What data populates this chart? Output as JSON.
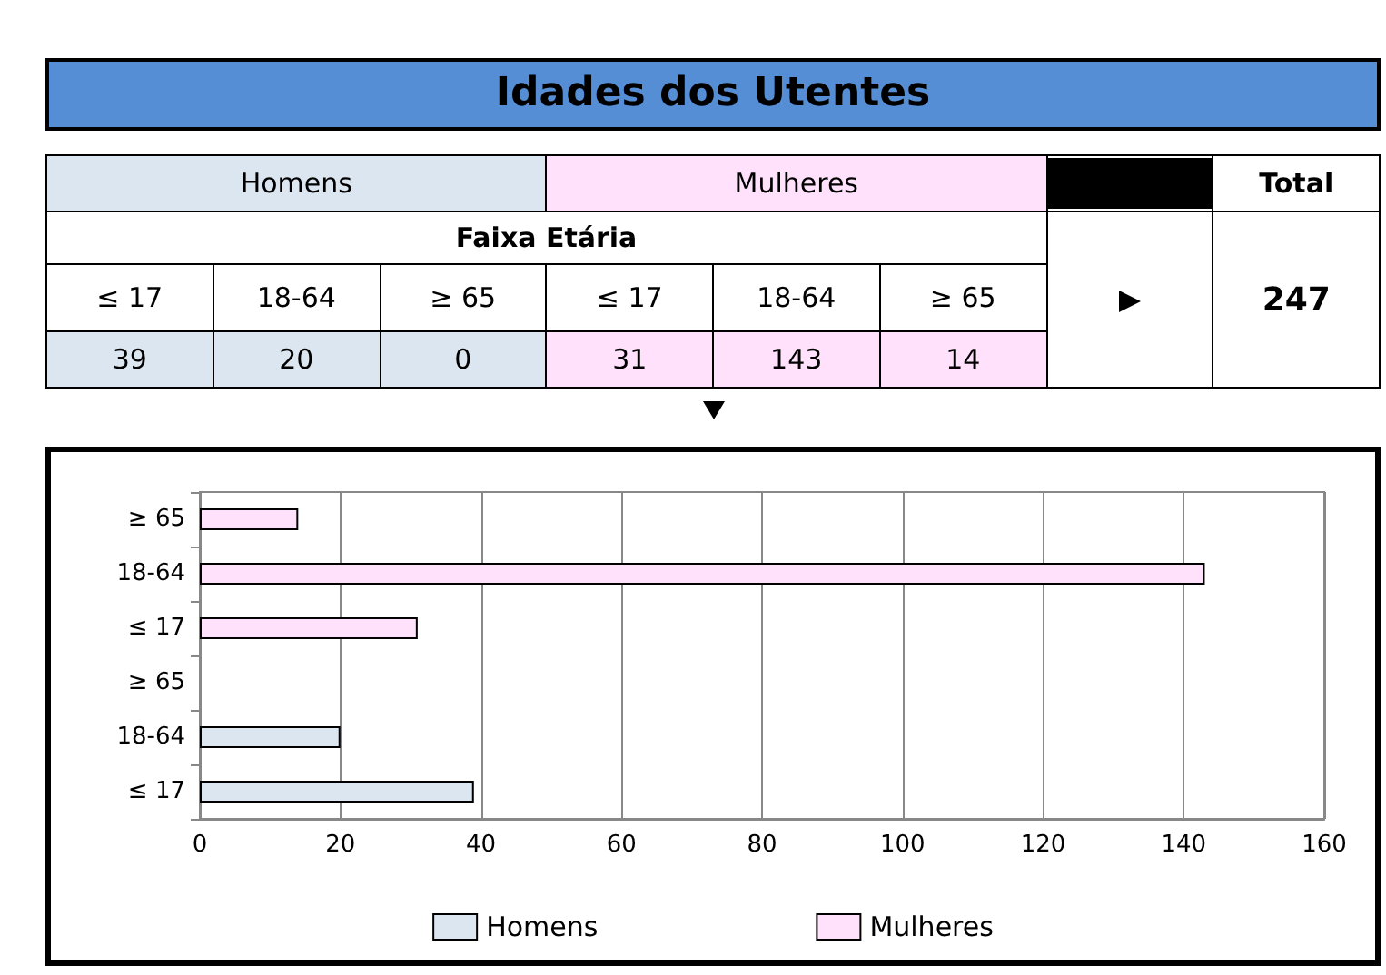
{
  "chart_data": [
    {
      "type": "other",
      "title": "Idades dos Utentes",
      "annotations": [
        "Homens",
        "Mulheres",
        "Total",
        "Faixa Etária",
        "≤ 17",
        "18-64",
        "≥ 65",
        "≤ 17",
        "18-64",
        "≥ 65",
        "247",
        "39",
        "20",
        "0",
        "31",
        "143",
        "14"
      ]
    },
    {
      "type": "bar",
      "orientation": "horizontal",
      "stacked": true,
      "categories": [
        "≥ 65",
        "18-64",
        "≤ 17",
        "≥ 65",
        "18-64",
        "≤ 17"
      ],
      "series": [
        {
          "name": "Homens",
          "color": "#dce6f1",
          "values": [
            null,
            null,
            null,
            0,
            20,
            39
          ]
        },
        {
          "name": "Mulheres",
          "color": "#ffe1fb",
          "values": [
            14,
            143,
            31,
            null,
            null,
            null
          ]
        }
      ],
      "xlim": [
        0,
        160
      ],
      "xticks": [
        0,
        20,
        40,
        60,
        80,
        100,
        120,
        140,
        160
      ],
      "grid": "x",
      "legend": "bottom"
    }
  ]
}
